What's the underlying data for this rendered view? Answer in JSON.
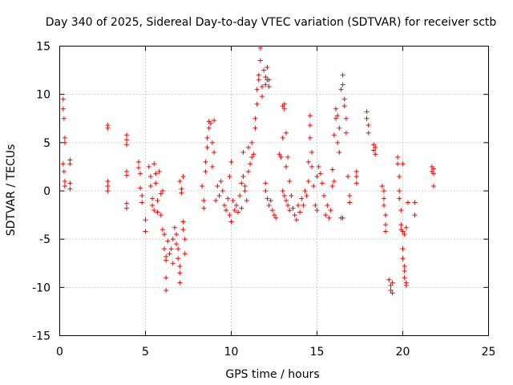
{
  "chart_data": {
    "type": "scatter",
    "title": "Day 340 of 2025, Sidereal Day-to-day VTEC variation (SDTVAR) for receiver sctb",
    "xlabel": "GPS time / hours",
    "ylabel": "SDTVAR / TECUs",
    "xlim": [
      0,
      25
    ],
    "ylim": [
      -15,
      15
    ],
    "xticks": [
      0,
      5,
      10,
      15,
      20,
      25
    ],
    "yticks": [
      -15,
      -10,
      -5,
      0,
      5,
      10,
      15
    ],
    "xtick_labels": [
      "0",
      "5",
      "10",
      "15",
      "20",
      "25"
    ],
    "ytick_labels": [
      "-15",
      "-10",
      "-5",
      "0",
      "5",
      "10",
      "15"
    ],
    "grid": true,
    "marker": "+",
    "color": "#ff0000",
    "series": [
      {
        "name": "SDTVAR",
        "points": [
          [
            0.2,
            9.5
          ],
          [
            0.2,
            8.5
          ],
          [
            0.25,
            7.5
          ],
          [
            0.3,
            5.5
          ],
          [
            0.3,
            5.0
          ],
          [
            0.2,
            2.8
          ],
          [
            0.25,
            2.0
          ],
          [
            0.3,
            1.0
          ],
          [
            0.3,
            0.5
          ],
          [
            0.6,
            3.2
          ],
          [
            0.6,
            2.8
          ],
          [
            0.6,
            0.8
          ],
          [
            0.6,
            0.2
          ],
          [
            2.8,
            6.8
          ],
          [
            2.8,
            6.5
          ],
          [
            2.8,
            1.0
          ],
          [
            2.8,
            0.5
          ],
          [
            2.8,
            0.0
          ],
          [
            3.9,
            5.8
          ],
          [
            3.9,
            5.3
          ],
          [
            3.9,
            4.8
          ],
          [
            3.9,
            2.0
          ],
          [
            3.9,
            1.6
          ],
          [
            3.9,
            -1.3
          ],
          [
            3.9,
            -1.8
          ],
          [
            4.6,
            3.0
          ],
          [
            4.6,
            2.4
          ],
          [
            4.7,
            1.8
          ],
          [
            4.7,
            0.3
          ],
          [
            4.8,
            -0.5
          ],
          [
            4.8,
            -1.2
          ],
          [
            5.0,
            -3.0
          ],
          [
            5.0,
            -4.2
          ],
          [
            5.2,
            2.5
          ],
          [
            5.3,
            1.5
          ],
          [
            5.3,
            0.5
          ],
          [
            5.4,
            -0.8
          ],
          [
            5.4,
            -1.5
          ],
          [
            5.5,
            -2.0
          ],
          [
            5.5,
            2.8
          ],
          [
            5.6,
            1.8
          ],
          [
            5.6,
            0.8
          ],
          [
            5.7,
            -1.0
          ],
          [
            5.7,
            -2.2
          ],
          [
            5.8,
            2.0
          ],
          [
            5.9,
            -0.3
          ],
          [
            5.9,
            -2.5
          ],
          [
            6.0,
            -4.0
          ],
          [
            6.0,
            0.0
          ],
          [
            6.1,
            -4.5
          ],
          [
            6.1,
            -6.0
          ],
          [
            6.2,
            -6.8
          ],
          [
            6.2,
            -7.2
          ],
          [
            6.2,
            -9.0
          ],
          [
            6.2,
            -10.3
          ],
          [
            6.3,
            -5.2
          ],
          [
            6.4,
            -6.5
          ],
          [
            6.5,
            -6.0
          ],
          [
            6.6,
            -5.0
          ],
          [
            6.6,
            -7.5
          ],
          [
            6.7,
            -3.8
          ],
          [
            6.8,
            -4.5
          ],
          [
            6.8,
            -5.5
          ],
          [
            6.9,
            -6.0
          ],
          [
            6.9,
            -7.0
          ],
          [
            7.0,
            -7.8
          ],
          [
            7.0,
            -8.5
          ],
          [
            7.0,
            -9.5
          ],
          [
            7.0,
            1.0
          ],
          [
            7.1,
            0.2
          ],
          [
            7.1,
            -0.2
          ],
          [
            7.2,
            -3.2
          ],
          [
            7.2,
            -4.0
          ],
          [
            7.3,
            -5.0
          ],
          [
            7.3,
            -6.5
          ],
          [
            7.2,
            1.5
          ],
          [
            8.3,
            0.5
          ],
          [
            8.4,
            -1.0
          ],
          [
            8.4,
            -1.8
          ],
          [
            8.5,
            2.0
          ],
          [
            8.5,
            3.0
          ],
          [
            8.6,
            4.5
          ],
          [
            8.6,
            5.5
          ],
          [
            8.7,
            6.5
          ],
          [
            8.7,
            7.2
          ],
          [
            8.8,
            7.0
          ],
          [
            8.9,
            5.0
          ],
          [
            8.9,
            2.5
          ],
          [
            9.0,
            7.3
          ],
          [
            9.0,
            4.0
          ],
          [
            9.1,
            -1.0
          ],
          [
            9.2,
            0.5
          ],
          [
            9.3,
            -0.5
          ],
          [
            9.4,
            1.0
          ],
          [
            9.5,
            0.0
          ],
          [
            9.6,
            -1.5
          ],
          [
            9.7,
            -2.0
          ],
          [
            9.8,
            -0.8
          ],
          [
            9.9,
            1.5
          ],
          [
            9.9,
            -2.5
          ],
          [
            10.0,
            3.0
          ],
          [
            10.0,
            -3.2
          ],
          [
            10.1,
            -1.0
          ],
          [
            10.2,
            -2.0
          ],
          [
            10.3,
            -1.5
          ],
          [
            10.4,
            -2.2
          ],
          [
            10.5,
            -0.5
          ],
          [
            10.6,
            0.8
          ],
          [
            10.6,
            -1.8
          ],
          [
            10.7,
            1.5
          ],
          [
            10.7,
            4.0
          ],
          [
            10.8,
            0.5
          ],
          [
            10.8,
            0.0
          ],
          [
            10.9,
            -1.0
          ],
          [
            11.0,
            2.0
          ],
          [
            11.0,
            4.5
          ],
          [
            11.1,
            2.8
          ],
          [
            11.2,
            3.5
          ],
          [
            11.2,
            5.0
          ],
          [
            11.3,
            3.8
          ],
          [
            11.4,
            6.5
          ],
          [
            11.4,
            7.5
          ],
          [
            11.5,
            9.0
          ],
          [
            11.5,
            10.5
          ],
          [
            11.6,
            11.5
          ],
          [
            11.6,
            12.0
          ],
          [
            11.7,
            13.5
          ],
          [
            11.7,
            14.8
          ],
          [
            11.8,
            10.8
          ],
          [
            11.8,
            9.8
          ],
          [
            11.9,
            12.5
          ],
          [
            12.0,
            11.8
          ],
          [
            12.0,
            11.0
          ],
          [
            12.1,
            11.5
          ],
          [
            12.1,
            12.8
          ],
          [
            12.2,
            11.5
          ],
          [
            12.2,
            10.8
          ],
          [
            12.0,
            0.8
          ],
          [
            12.0,
            0.0
          ],
          [
            12.1,
            -0.8
          ],
          [
            12.2,
            -1.5
          ],
          [
            12.3,
            -1.0
          ],
          [
            12.4,
            -2.0
          ],
          [
            12.5,
            -2.5
          ],
          [
            12.6,
            -2.8
          ],
          [
            12.8,
            3.8
          ],
          [
            12.9,
            3.5
          ],
          [
            13.0,
            5.5
          ],
          [
            13.0,
            8.8
          ],
          [
            13.1,
            8.5
          ],
          [
            13.1,
            9.0
          ],
          [
            13.2,
            6.0
          ],
          [
            13.2,
            2.5
          ],
          [
            13.3,
            3.5
          ],
          [
            13.4,
            1.0
          ],
          [
            13.0,
            0.0
          ],
          [
            13.1,
            -0.5
          ],
          [
            13.2,
            -1.0
          ],
          [
            13.3,
            -1.5
          ],
          [
            13.4,
            -2.0
          ],
          [
            13.5,
            -0.5
          ],
          [
            13.6,
            -1.8
          ],
          [
            13.7,
            -2.5
          ],
          [
            13.8,
            -3.0
          ],
          [
            13.9,
            -1.5
          ],
          [
            14.0,
            -2.2
          ],
          [
            14.1,
            -0.8
          ],
          [
            14.2,
            -1.5
          ],
          [
            14.3,
            0.0
          ],
          [
            14.4,
            -0.5
          ],
          [
            14.5,
            1.0
          ],
          [
            14.5,
            3.0
          ],
          [
            14.6,
            7.8
          ],
          [
            14.6,
            6.8
          ],
          [
            14.6,
            5.5
          ],
          [
            14.7,
            4.0
          ],
          [
            14.7,
            2.5
          ],
          [
            14.8,
            0.5
          ],
          [
            14.9,
            -1.5
          ],
          [
            15.0,
            -2.0
          ],
          [
            15.0,
            1.5
          ],
          [
            15.1,
            2.5
          ],
          [
            15.2,
            1.8
          ],
          [
            15.3,
            0.8
          ],
          [
            15.4,
            -0.5
          ],
          [
            15.5,
            -2.5
          ],
          [
            15.6,
            -1.5
          ],
          [
            15.7,
            -2.8
          ],
          [
            15.8,
            -2.0
          ],
          [
            15.9,
            0.5
          ],
          [
            15.9,
            2.2
          ],
          [
            16.0,
            1.0
          ],
          [
            16.0,
            5.8
          ],
          [
            16.1,
            7.5
          ],
          [
            16.1,
            8.5
          ],
          [
            16.2,
            7.8
          ],
          [
            16.2,
            5.0
          ],
          [
            16.3,
            6.5
          ],
          [
            16.3,
            4.0
          ],
          [
            16.4,
            10.5
          ],
          [
            16.5,
            12.0
          ],
          [
            16.5,
            11.0
          ],
          [
            16.6,
            9.5
          ],
          [
            16.6,
            8.8
          ],
          [
            16.7,
            7.5
          ],
          [
            16.7,
            6.0
          ],
          [
            16.4,
            -2.8
          ],
          [
            16.5,
            -2.8
          ],
          [
            16.8,
            1.5
          ],
          [
            16.9,
            -0.5
          ],
          [
            16.9,
            -1.2
          ],
          [
            17.3,
            1.5
          ],
          [
            17.3,
            0.8
          ],
          [
            17.3,
            2.0
          ],
          [
            17.9,
            8.2
          ],
          [
            17.9,
            7.5
          ],
          [
            18.0,
            6.8
          ],
          [
            18.0,
            6.0
          ],
          [
            18.3,
            4.8
          ],
          [
            18.3,
            4.2
          ],
          [
            18.4,
            3.8
          ],
          [
            18.4,
            4.5
          ],
          [
            18.8,
            0.5
          ],
          [
            18.9,
            0.0
          ],
          [
            18.9,
            -0.8
          ],
          [
            18.9,
            -1.5
          ],
          [
            19.0,
            -2.5
          ],
          [
            19.0,
            -3.5
          ],
          [
            19.0,
            -4.2
          ],
          [
            19.2,
            -9.2
          ],
          [
            19.3,
            -9.8
          ],
          [
            19.3,
            -10.3
          ],
          [
            19.4,
            -9.5
          ],
          [
            19.4,
            -10.6
          ],
          [
            19.7,
            3.5
          ],
          [
            19.7,
            2.8
          ],
          [
            19.8,
            1.5
          ],
          [
            19.8,
            0.0
          ],
          [
            19.8,
            -0.8
          ],
          [
            19.9,
            -2.0
          ],
          [
            19.9,
            -3.5
          ],
          [
            19.9,
            -4.0
          ],
          [
            20.0,
            -4.2
          ],
          [
            20.0,
            -6.0
          ],
          [
            20.0,
            -7.0
          ],
          [
            20.1,
            -7.8
          ],
          [
            20.1,
            -8.3
          ],
          [
            20.1,
            -9.0
          ],
          [
            20.2,
            -9.5
          ],
          [
            20.2,
            -9.8
          ],
          [
            20.1,
            -4.5
          ],
          [
            20.2,
            -3.8
          ],
          [
            20.0,
            2.8
          ],
          [
            20.3,
            -1.2
          ],
          [
            20.7,
            -1.2
          ],
          [
            20.7,
            -2.5
          ],
          [
            21.7,
            2.5
          ],
          [
            21.7,
            2.0
          ],
          [
            21.8,
            2.3
          ],
          [
            21.8,
            1.8
          ],
          [
            21.8,
            0.5
          ]
        ]
      }
    ]
  }
}
